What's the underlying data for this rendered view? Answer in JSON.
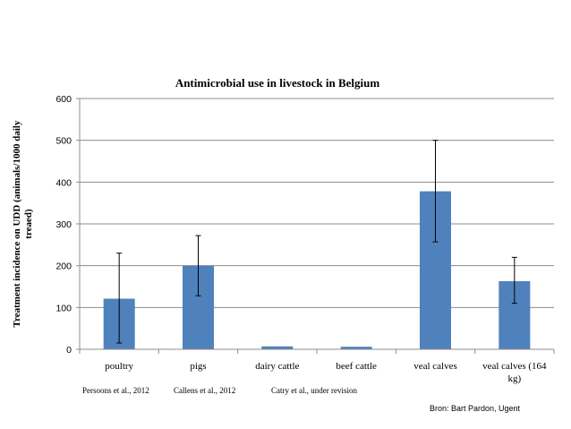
{
  "chart_data": {
    "type": "bar",
    "title": "Antimicrobial use in livestock in Belgium",
    "ylabel_lines": [
      "Treatment incidence on UDD (animals/1000 daily",
      "treaed)"
    ],
    "xlabel": "",
    "ylim": [
      0,
      600
    ],
    "yticks": [
      0,
      100,
      200,
      300,
      400,
      500,
      600
    ],
    "grid": true,
    "categories": [
      "poultry",
      "pigs",
      "dairy cattle",
      "beef cattle",
      "veal calves",
      "veal calves (164 kg)"
    ],
    "category_label_lines": [
      [
        "poultry"
      ],
      [
        "pigs"
      ],
      [
        "dairy cattle"
      ],
      [
        "beef cattle"
      ],
      [
        "veal calves"
      ],
      [
        "veal calves (164",
        "kg)"
      ]
    ],
    "values": [
      121,
      200,
      7,
      6,
      378,
      163
    ],
    "error_bars": [
      {
        "low": 15,
        "high": 230
      },
      {
        "low": 128,
        "high": 272
      },
      null,
      null,
      {
        "low": 257,
        "high": 500
      },
      {
        "low": 110,
        "high": 220
      }
    ],
    "bar_color": "#4F81BD"
  },
  "sources": [
    "Persoons et al., 2012",
    "Callens et al., 2012",
    "Catry et al., under revision"
  ],
  "credit": "Bron: Bart Pardon, Ugent"
}
